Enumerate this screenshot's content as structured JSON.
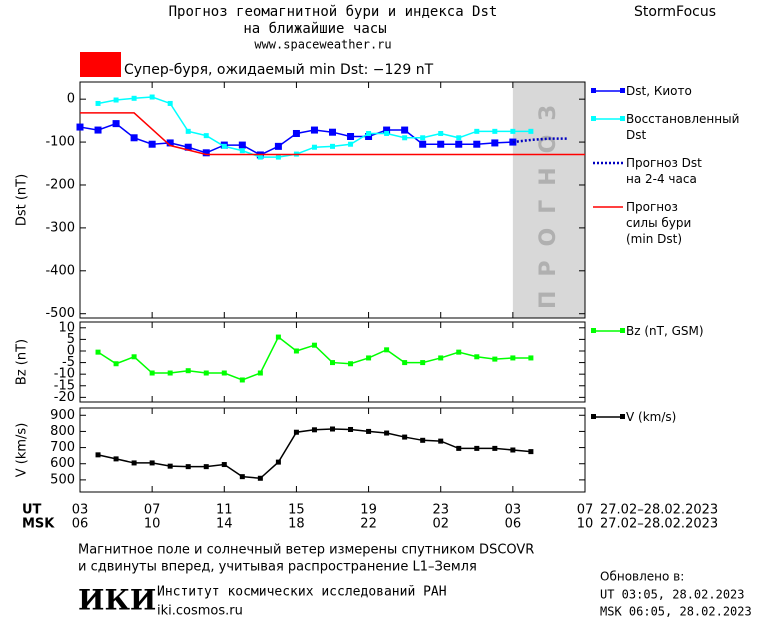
{
  "header": {
    "title": "Прогноз геомагнитной бури и индекса Dst",
    "subtitle": "на ближайшие часы",
    "url": "www.spaceweather.ru",
    "brand": "StormFocus"
  },
  "chart_data": [
    {
      "type": "line",
      "ylabel": "Dst (nT)",
      "xlim": [
        0,
        28
      ],
      "xticks": [
        0,
        4,
        8,
        12,
        16,
        20,
        24,
        28
      ],
      "ylim": [
        -510,
        40
      ],
      "yticks": [
        0,
        -100,
        -200,
        -300,
        -400,
        -500
      ],
      "forecast_xlim": [
        24,
        28
      ],
      "forecast_label": "ПРОГНОЗ",
      "storm_label": "Супер-буря, ожидаемый min Dst: −129 nT",
      "storm_color": "#ff0000",
      "series": [
        {
          "name": "Dst, Киото",
          "color": "#0000ff",
          "marker": "filled",
          "dash": "solid",
          "x": [
            0,
            1,
            2,
            3,
            4,
            5,
            6,
            7,
            8,
            9,
            10,
            11,
            12,
            13,
            14,
            15,
            16,
            17,
            18,
            19,
            20,
            21,
            22,
            23,
            24
          ],
          "values": [
            -65,
            -72,
            -57,
            -90,
            -105,
            -102,
            -112,
            -125,
            -107,
            -107,
            -130,
            -110,
            -80,
            -72,
            -77,
            -87,
            -87,
            -72,
            -72,
            -105,
            -105,
            -105,
            -105,
            -102,
            -100
          ]
        },
        {
          "name": "Восстановленный\nDst",
          "color": "#00ffff",
          "marker": "small",
          "dash": "solid",
          "x": [
            1,
            2,
            3,
            4,
            5,
            6,
            7,
            8,
            9,
            10,
            11,
            12,
            13,
            14,
            15,
            16,
            17,
            18,
            19,
            20,
            21,
            22,
            23,
            24,
            25
          ],
          "values": [
            -10,
            -2,
            2,
            5,
            -10,
            -75,
            -85,
            -110,
            -120,
            -135,
            -135,
            -128,
            -112,
            -110,
            -105,
            -80,
            -80,
            -90,
            -90,
            -80,
            -90,
            -75,
            -75,
            -75,
            -75
          ]
        },
        {
          "name": "Прогноз Dst\nна 2-4 часа",
          "color": "#0000c0",
          "marker": "none",
          "dash": "dotted",
          "x": [
            24,
            25,
            26,
            27
          ],
          "values": [
            -100,
            -95,
            -92,
            -92
          ]
        },
        {
          "name": "Прогноз\nсилы бури\n(min Dst)",
          "color": "#ff0000",
          "marker": "none",
          "dash": "solid",
          "x": [
            0,
            3,
            5,
            7,
            28
          ],
          "values": [
            -32,
            -32,
            -108,
            -129,
            -129
          ]
        }
      ]
    },
    {
      "type": "line",
      "ylabel": "Bz (nT)",
      "xlim": [
        0,
        28
      ],
      "xticks": [
        0,
        4,
        8,
        12,
        16,
        20,
        24,
        28
      ],
      "ylim": [
        -22,
        12.5
      ],
      "yticks": [
        10,
        5,
        0,
        -5,
        -10,
        -15,
        -20
      ],
      "series": [
        {
          "name": "Bz (nT, GSM)",
          "color": "#00ff00",
          "marker": "small",
          "dash": "solid",
          "x": [
            1,
            2,
            3,
            4,
            5,
            6,
            7,
            8,
            9,
            10,
            11,
            12,
            13,
            14,
            15,
            16,
            17,
            18,
            19,
            20,
            21,
            22,
            23,
            24,
            25
          ],
          "values": [
            -0.5,
            -5.5,
            -2.5,
            -9.5,
            -9.5,
            -8.5,
            -9.5,
            -9.5,
            -12.5,
            -9.5,
            6,
            0,
            2.5,
            -5,
            -5.5,
            -3,
            0.5,
            -5,
            -5,
            -3,
            -0.5,
            -2.5,
            -3.5,
            -3,
            -3
          ]
        }
      ]
    },
    {
      "type": "line",
      "ylabel": "V (km/s)",
      "xlim": [
        0,
        28
      ],
      "xticks": [
        {
          "value": 0,
          "label": "03"
        },
        {
          "value": 4,
          "label": "07"
        },
        {
          "value": 8,
          "label": "11"
        },
        {
          "value": 12,
          "label": "15"
        },
        {
          "value": 16,
          "label": "19"
        },
        {
          "value": 20,
          "label": "23"
        },
        {
          "value": 24,
          "label": "03"
        },
        {
          "value": 28,
          "label": "07"
        }
      ],
      "msk_ticks": [
        "06",
        "10",
        "14",
        "18",
        "22",
        "02",
        "06",
        "10"
      ],
      "x_label_ut": "UT",
      "x_label_msk": "MSK",
      "date_range": "27.02–28.02.2023",
      "ylim": [
        425,
        945
      ],
      "yticks": [
        900,
        800,
        700,
        600,
        500
      ],
      "series": [
        {
          "name": "V (km/s)",
          "color": "#000000",
          "marker": "small",
          "dash": "solid",
          "x": [
            1,
            2,
            3,
            4,
            5,
            6,
            7,
            8,
            9,
            10,
            11,
            12,
            13,
            14,
            15,
            16,
            17,
            18,
            19,
            20,
            21,
            22,
            23,
            24,
            25
          ],
          "values": [
            655,
            630,
            605,
            605,
            585,
            582,
            582,
            595,
            520,
            510,
            610,
            795,
            810,
            815,
            812,
            800,
            790,
            765,
            745,
            740,
            695,
            695,
            695,
            685,
            675
          ]
        }
      ]
    }
  ],
  "footer": {
    "note": [
      "Магнитное поле и солнечный ветер измерены спутником DSCOVR",
      "и сдвинуты вперед, учитывая распространение L1–Земля"
    ],
    "logo": "ИКИ",
    "institute": "Институт космических исследований РАН",
    "site": "iki.cosmos.ru",
    "updated": [
      "Обновлено в:",
      "UT  03:05, 28.02.2023",
      "MSK 06:05, 28.02.2023"
    ]
  }
}
